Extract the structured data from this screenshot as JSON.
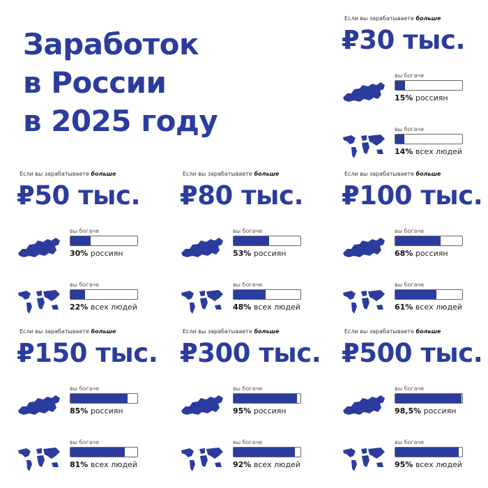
{
  "title": [
    "Заработок",
    "в России",
    "в 2025 году"
  ],
  "caption_prefix": "Если вы зарабатываете ",
  "caption_bold": "больше",
  "richer_label": "вы богаче",
  "russia_suffix": "россиян",
  "world_suffix": "всех людей",
  "accent": "#2b3c9e",
  "cards": [
    {
      "price": "₽30 тыс.",
      "russia_pct": "15%",
      "russia_value": 15,
      "world_pct": "14%",
      "world_value": 14
    },
    {
      "price": "₽50 тыс.",
      "russia_pct": "30%",
      "russia_value": 30,
      "world_pct": "22%",
      "world_value": 22
    },
    {
      "price": "₽80 тыс.",
      "russia_pct": "53%",
      "russia_value": 53,
      "world_pct": "48%",
      "world_value": 48
    },
    {
      "price": "₽100 тыс.",
      "russia_pct": "68%",
      "russia_value": 68,
      "world_pct": "61%",
      "world_value": 61
    },
    {
      "price": "₽150 тыс.",
      "russia_pct": "85%",
      "russia_value": 85,
      "world_pct": "81%",
      "world_value": 81
    },
    {
      "price": "₽300 тыс.",
      "russia_pct": "95%",
      "russia_value": 95,
      "world_pct": "92%",
      "world_value": 92
    },
    {
      "price": "₽500 тыс.",
      "russia_pct": "98,5%",
      "russia_value": 98.5,
      "world_pct": "95%",
      "world_value": 95
    }
  ]
}
